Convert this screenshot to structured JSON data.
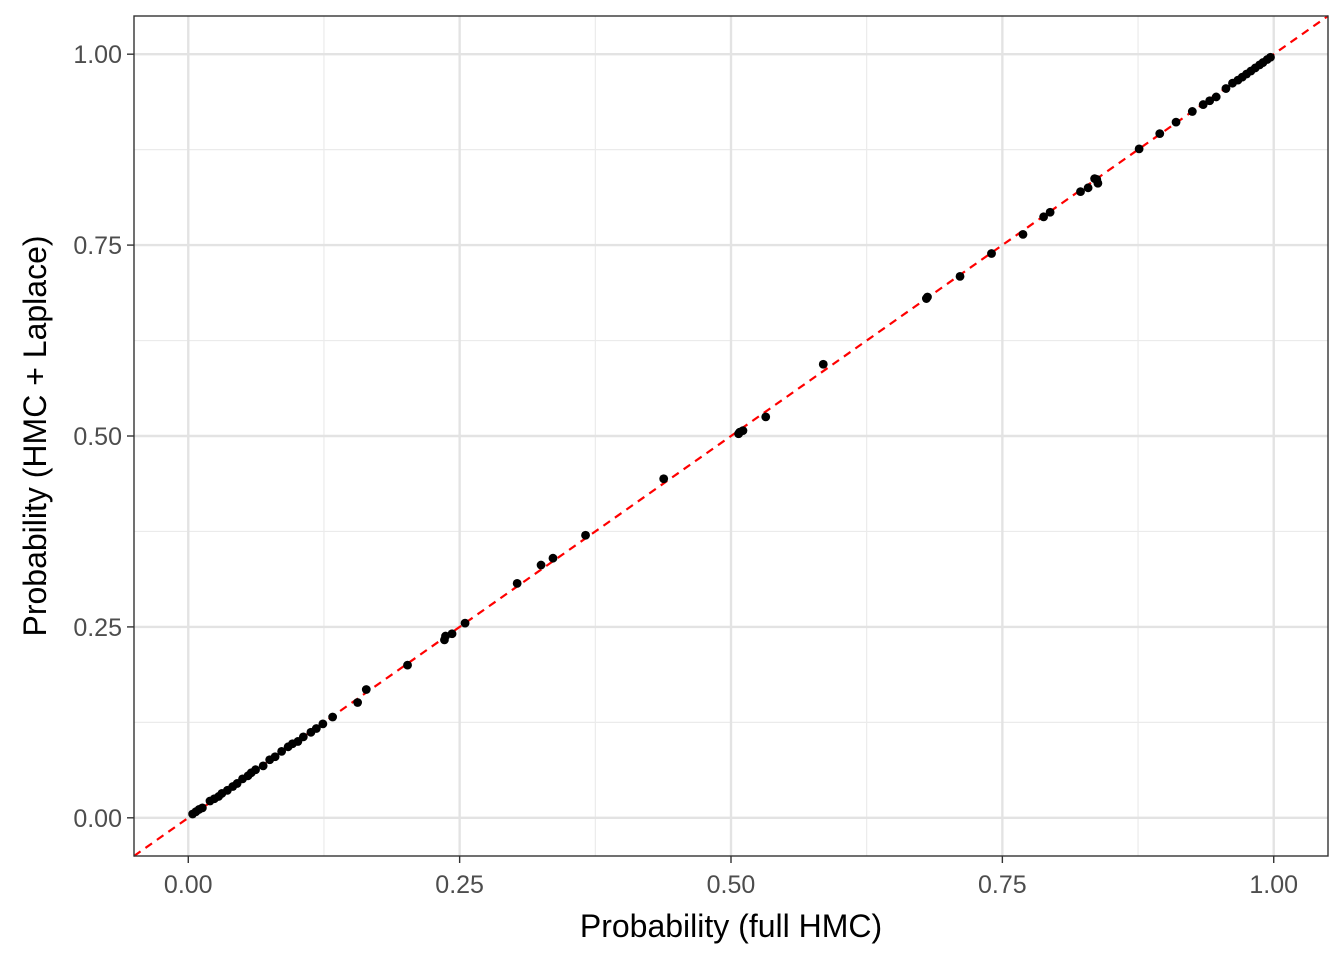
{
  "chart_data": {
    "type": "scatter",
    "xlabel": "Probability (full HMC)",
    "ylabel": "Probability (HMC + Laplace)",
    "xlim": [
      -0.05,
      1.05
    ],
    "ylim": [
      -0.05,
      1.05
    ],
    "x_ticks": [
      "0.00",
      "0.25",
      "0.50",
      "0.75",
      "1.00"
    ],
    "y_ticks": [
      "0.00",
      "0.25",
      "0.50",
      "0.75",
      "1.00"
    ],
    "grid": true,
    "legend": "none",
    "reference_line": {
      "slope": 1,
      "intercept": 0,
      "style": "dashed",
      "color": "#ff0000"
    },
    "point_color": "#000000",
    "points": [
      [
        0.004,
        0.005
      ],
      [
        0.007,
        0.008
      ],
      [
        0.01,
        0.011
      ],
      [
        0.013,
        0.013
      ],
      [
        0.02,
        0.022
      ],
      [
        0.024,
        0.025
      ],
      [
        0.028,
        0.028
      ],
      [
        0.031,
        0.032
      ],
      [
        0.036,
        0.036
      ],
      [
        0.041,
        0.041
      ],
      [
        0.045,
        0.045
      ],
      [
        0.05,
        0.051
      ],
      [
        0.055,
        0.055
      ],
      [
        0.058,
        0.059
      ],
      [
        0.062,
        0.063
      ],
      [
        0.069,
        0.068
      ],
      [
        0.075,
        0.076
      ],
      [
        0.08,
        0.08
      ],
      [
        0.086,
        0.087
      ],
      [
        0.092,
        0.093
      ],
      [
        0.096,
        0.097
      ],
      [
        0.101,
        0.1
      ],
      [
        0.106,
        0.106
      ],
      [
        0.113,
        0.112
      ],
      [
        0.118,
        0.117
      ],
      [
        0.124,
        0.123
      ],
      [
        0.133,
        0.132
      ],
      [
        0.156,
        0.151
      ],
      [
        0.164,
        0.168
      ],
      [
        0.202,
        0.2
      ],
      [
        0.236,
        0.233
      ],
      [
        0.237,
        0.238
      ],
      [
        0.243,
        0.241
      ],
      [
        0.255,
        0.255
      ],
      [
        0.303,
        0.307
      ],
      [
        0.325,
        0.331
      ],
      [
        0.336,
        0.34
      ],
      [
        0.366,
        0.37
      ],
      [
        0.438,
        0.444
      ],
      [
        0.507,
        0.503
      ],
      [
        0.508,
        0.505
      ],
      [
        0.511,
        0.507
      ],
      [
        0.532,
        0.525
      ],
      [
        0.585,
        0.594
      ],
      [
        0.68,
        0.68
      ],
      [
        0.681,
        0.682
      ],
      [
        0.711,
        0.709
      ],
      [
        0.74,
        0.739
      ],
      [
        0.769,
        0.764
      ],
      [
        0.788,
        0.787
      ],
      [
        0.794,
        0.793
      ],
      [
        0.822,
        0.82
      ],
      [
        0.829,
        0.825
      ],
      [
        0.835,
        0.837
      ],
      [
        0.837,
        0.836
      ],
      [
        0.838,
        0.831
      ],
      [
        0.876,
        0.876
      ],
      [
        0.895,
        0.896
      ],
      [
        0.91,
        0.911
      ],
      [
        0.925,
        0.925
      ],
      [
        0.935,
        0.934
      ],
      [
        0.941,
        0.939
      ],
      [
        0.947,
        0.944
      ],
      [
        0.956,
        0.955
      ],
      [
        0.962,
        0.962
      ],
      [
        0.967,
        0.966
      ],
      [
        0.971,
        0.97
      ],
      [
        0.975,
        0.974
      ],
      [
        0.979,
        0.978
      ],
      [
        0.983,
        0.982
      ],
      [
        0.987,
        0.986
      ],
      [
        0.99,
        0.989
      ],
      [
        0.994,
        0.993
      ],
      [
        0.997,
        0.996
      ]
    ]
  }
}
